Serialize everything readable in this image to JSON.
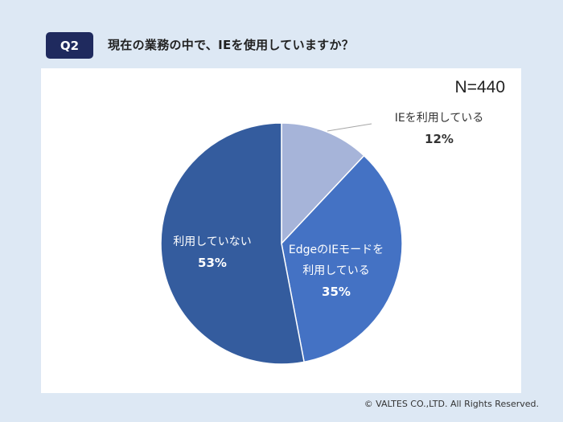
{
  "header": {
    "badge": "Q2",
    "question": "現在の業務の中で、IEを使用していますか？"
  },
  "chart": {
    "sample_size_label": "N=440",
    "slices": [
      {
        "label": "IEを利用している",
        "label_lines": [
          "IEを利用している"
        ],
        "percent_label": "12%",
        "value": 12,
        "color": "#a6b4d9"
      },
      {
        "label": "EdgeのIEモードを利用している",
        "label_lines": [
          "EdgeのIEモードを",
          "利用している"
        ],
        "percent_label": "35%",
        "value": 35,
        "color": "#4472c4"
      },
      {
        "label": "利用していない",
        "label_lines": [
          "利用していない"
        ],
        "percent_label": "53%",
        "value": 53,
        "color": "#345c9e"
      }
    ]
  },
  "footer": {
    "copyright": "© VALTES CO.,LTD. All Rights Reserved."
  },
  "colors": {
    "background": "#dde8f4",
    "badge": "#1f2a5e",
    "card": "#ffffff"
  },
  "chart_data": {
    "type": "pie",
    "title": "現在の業務の中で、IEを使用していますか？",
    "subtitle": "N=440",
    "categories": [
      "IEを利用している",
      "EdgeのIEモードを利用している",
      "利用していない"
    ],
    "values": [
      12,
      35,
      53
    ],
    "unit": "%",
    "colors": [
      "#a6b4d9",
      "#4472c4",
      "#345c9e"
    ],
    "start_angle": "12 o'clock, clockwise",
    "legend": "none (data labels on slices)"
  }
}
